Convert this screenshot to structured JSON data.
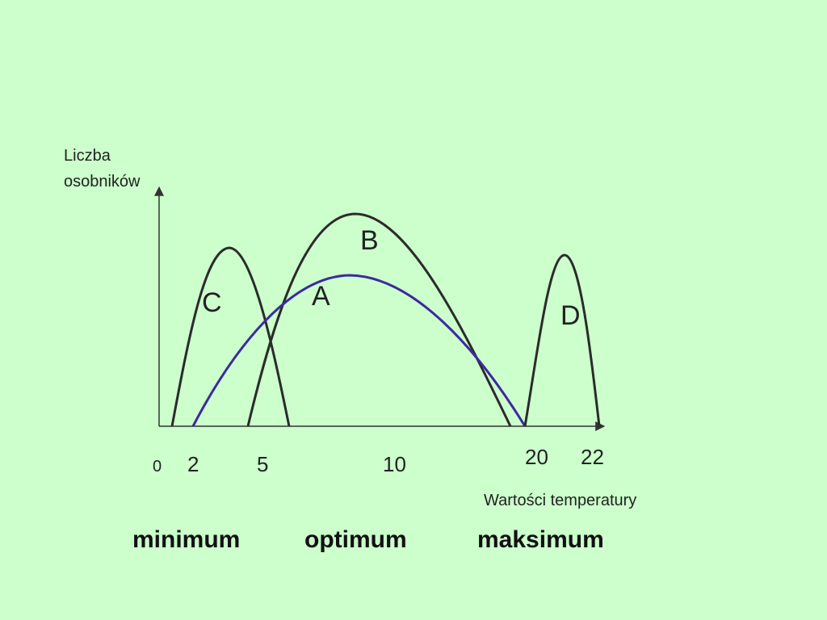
{
  "colors": {
    "background": "#ccffcc",
    "curve_dark": "#2b2b2b",
    "curve_blue": "#3c2aa0",
    "axis": "#333333"
  },
  "axes": {
    "y_title_line1": "Liczba",
    "y_title_line2": "osobników",
    "x_title": "Wartości temperatury"
  },
  "ticks": {
    "origin": "0",
    "t2": "2",
    "t5": "5",
    "t10": "10",
    "t20": "20",
    "t22": "22"
  },
  "curves": {
    "a": "A",
    "b": "B",
    "c": "C",
    "d": "D"
  },
  "bottom_labels": {
    "minimum": "minimum",
    "optimum": "optimum",
    "maksimum": "maksimum"
  }
}
